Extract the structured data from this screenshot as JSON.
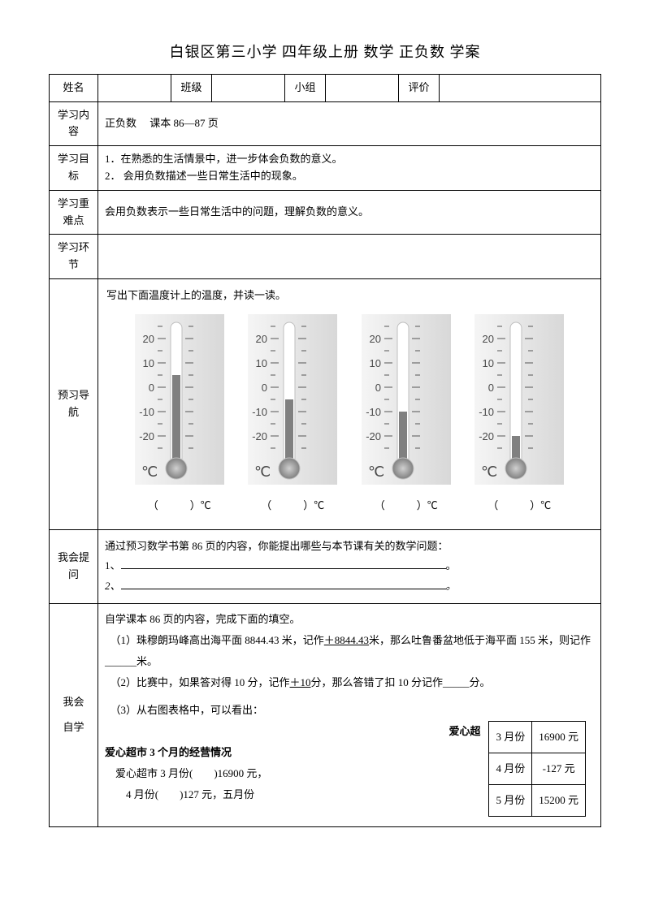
{
  "page_title": "白银区第三小学 四年级上册 数学 正负数 学案",
  "header_row": {
    "name_label": "姓名",
    "class_label": "班级",
    "group_label": "小组",
    "eval_label": "评价"
  },
  "rows": {
    "content_label": "学习内容",
    "content_text": "正负数　 课本 86—87 页",
    "goal_label": "学习目标",
    "goal_1": "1．在熟悉的生活情景中，进一步体会负数的意义。",
    "goal_2": "2． 会用负数描述一些日常生活中的现象。",
    "difficult_label": "学习重难点",
    "difficult_text": "会用负数表示一些日常生活中的问题，理解负数的意义。",
    "phase_label": "学习环节",
    "preview_label": "预习导航",
    "preview_instruction": "写出下面温度计上的温度，并读一读。",
    "thermo_unit": "（　　　）℃",
    "question_label": "我会提问",
    "question_intro": "通过预习数学书第 86 页的内容，你能提出哪些与本节课有关的数学问题：",
    "q1_prefix": "1、",
    "q2_prefix": "2、",
    "period": "。",
    "selfstudy_label_1": "我会",
    "selfstudy_label_2": "自学",
    "selfstudy_intro": "自学课本 86 页的内容，完成下面的填空。",
    "ss_1a": "（1）珠穆朗玛峰高出海平面 8844.43 米，记作",
    "ss_1b": "＋8844.43",
    "ss_1c": "米，那么吐鲁番盆地低于海平面 155 米，则记作______米。",
    "ss_2a": "（2）比赛中，如果答对得 10 分，记作",
    "ss_2b": "＋10",
    "ss_2c": "分，那么答错了扣 10 分记作_____分。",
    "ss_3": "（3）从右图表格中，可以看出：",
    "shop_title": "爱心超市 3 个月的经营情况",
    "shop_line1": "爱心超市 3 月份(　　)16900 元，",
    "shop_line2": "4 月份(　　)127 元，五月份"
  },
  "inner_table": {
    "rows": [
      [
        "3 月份",
        "16900 元"
      ],
      [
        "4 月份",
        "-127 元"
      ],
      [
        "5 月份",
        "15200 元"
      ]
    ]
  },
  "thermometers": {
    "scale_labels": [
      "20",
      "10",
      "0",
      "-10",
      "-20"
    ],
    "unit_symbol": "℃",
    "levels": [
      5,
      -5,
      -10,
      -20
    ],
    "colors": {
      "bg_light": "#f5f5f5",
      "bg_dark": "#d8d8d8",
      "tube": "#ffffff",
      "tube_shadow": "#bfbfbf",
      "bulb": "#808080",
      "bulb_highlight": "#d0d0d0",
      "tick": "#555555",
      "text": "#4a4a4a"
    }
  }
}
